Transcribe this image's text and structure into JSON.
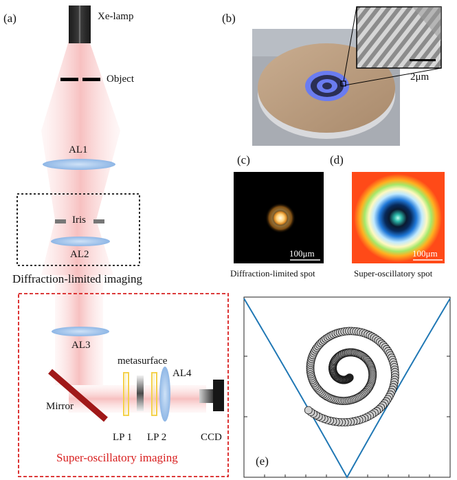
{
  "panels": {
    "a": "(a)",
    "b": "(b)",
    "c": "(c)",
    "d": "(d)",
    "e": "(e)"
  },
  "setup": {
    "lamp": "Xe-lamp",
    "object": "Object",
    "al1": "AL1",
    "iris": "Iris",
    "al2": "AL2",
    "diffraction_title": "Diffraction-limited imaging",
    "al3": "AL3",
    "metasurface": "metasurface",
    "al4": "AL4",
    "mirror": "Mirror",
    "lp1": "LP 1",
    "lp2": "LP 2",
    "ccd": "CCD",
    "superosc_title": "Super-oscillatory imaging"
  },
  "sample": {
    "scale": "2μm"
  },
  "spots": {
    "c_scale": "100μm",
    "c_caption": "Diffraction-limited spot",
    "d_scale": "100μm",
    "d_caption": "Super-oscillatory spot"
  },
  "colors": {
    "beam": "#f7c9c9",
    "lens": "#9fc3ea",
    "red_box": "#d81e1e",
    "mirror": "#a01818",
    "curve": "#1f77b4"
  }
}
